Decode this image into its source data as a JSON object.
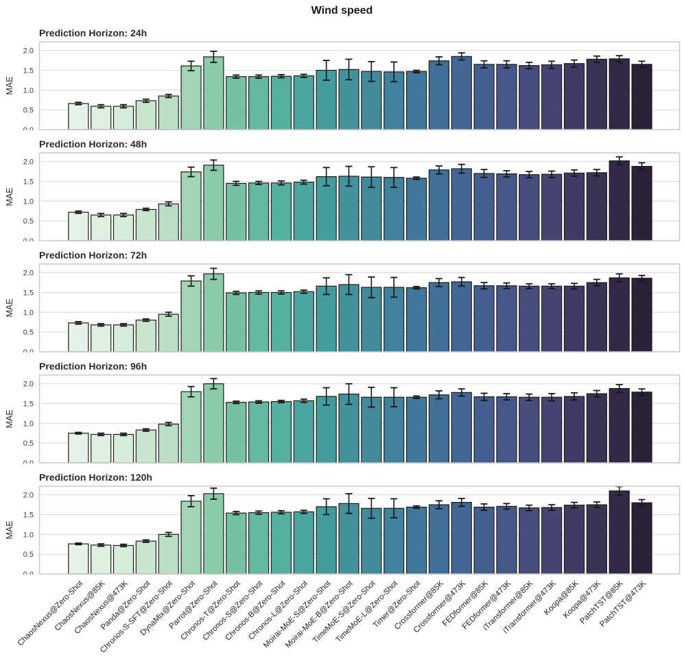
{
  "page": {
    "title": "Wind speed"
  },
  "chart_data": {
    "type": "bar",
    "title": "Wind speed",
    "ylabel": "MAE",
    "ylim": [
      0,
      2.22
    ],
    "yticks": [
      0.0,
      0.5,
      1.0,
      1.5,
      2.0
    ],
    "grid": true,
    "legend": "none",
    "error_bars": true,
    "categories": [
      "ChaosNexus@Zero-Shot",
      "ChaosNexus@85K",
      "ChaosNexus@473K",
      "Panda@Zero-Shot",
      "Chronos-S-SFT@Zero-Shot",
      "DynaMix@Zero-Shot",
      "Parrot@Zero-Shot",
      "Chronos-T@Zero-Shot",
      "Chronos-S@Zero-Shot",
      "Chronos-B@Zero-Shot",
      "Chronos-L@Zero-Shot",
      "Moirai-MoE-S@Zero-Shot",
      "Moirai-MoE-B@Zero-Shot",
      "TimeMoE-S@Zero-Shot",
      "TimeMoE-L@Zero-Shot",
      "Timer@Zero-Shot",
      "Crossformer@85K",
      "Crossformer@473K",
      "FEDformer@85K",
      "FEDformer@473K",
      "iTransformer@85K",
      "iTransformer@473K",
      "Koopa@85K",
      "Koopa@473K",
      "PatchTST@85K",
      "PatchTST@473K"
    ],
    "bar_colors": [
      "#E5F3E8",
      "#DDEFE0",
      "#D6ECD9",
      "#CAE6CF",
      "#BADFC4",
      "#A2D5B4",
      "#8CCBA8",
      "#76C1A1",
      "#65B9A0",
      "#55B0A0",
      "#4AA79F",
      "#449C9D",
      "#44929B",
      "#428A9B",
      "#40819B",
      "#3F789A",
      "#406F98",
      "#426795",
      "#445E8F",
      "#465687",
      "#474D7D",
      "#464471",
      "#403B63",
      "#393255",
      "#312946",
      "#2A2038"
    ],
    "bar_edge_color": "#1c1c1c",
    "error_color": "#161616",
    "grid_color": "#dcdcdc",
    "frame_color": "#c8c8c8",
    "subplots": [
      {
        "title": "Prediction Horizon: 24h",
        "horizon": "24h",
        "values": [
          0.66,
          0.59,
          0.59,
          0.73,
          0.85,
          1.61,
          1.84,
          1.34,
          1.34,
          1.35,
          1.36,
          1.5,
          1.52,
          1.47,
          1.46,
          1.47,
          1.74,
          1.85,
          1.65,
          1.65,
          1.62,
          1.64,
          1.67,
          1.78,
          1.79,
          1.65
        ],
        "errors": [
          0.03,
          0.04,
          0.04,
          0.04,
          0.04,
          0.12,
          0.14,
          0.04,
          0.04,
          0.04,
          0.04,
          0.25,
          0.26,
          0.25,
          0.25,
          0.03,
          0.1,
          0.09,
          0.09,
          0.09,
          0.08,
          0.09,
          0.09,
          0.08,
          0.08,
          0.08
        ]
      },
      {
        "title": "Prediction Horizon: 48h",
        "horizon": "48h",
        "values": [
          0.72,
          0.65,
          0.65,
          0.79,
          0.93,
          1.74,
          1.91,
          1.45,
          1.46,
          1.46,
          1.48,
          1.62,
          1.63,
          1.61,
          1.6,
          1.58,
          1.79,
          1.82,
          1.7,
          1.69,
          1.67,
          1.68,
          1.71,
          1.72,
          2.02,
          1.88
        ],
        "errors": [
          0.03,
          0.04,
          0.04,
          0.03,
          0.05,
          0.12,
          0.13,
          0.05,
          0.04,
          0.05,
          0.05,
          0.23,
          0.25,
          0.26,
          0.25,
          0.03,
          0.1,
          0.11,
          0.1,
          0.08,
          0.08,
          0.08,
          0.08,
          0.08,
          0.1,
          0.09
        ]
      },
      {
        "title": "Prediction Horizon: 72h",
        "horizon": "72h",
        "values": [
          0.73,
          0.68,
          0.68,
          0.8,
          0.95,
          1.79,
          1.97,
          1.49,
          1.5,
          1.5,
          1.52,
          1.66,
          1.7,
          1.63,
          1.63,
          1.62,
          1.75,
          1.77,
          1.67,
          1.67,
          1.66,
          1.66,
          1.66,
          1.75,
          1.87,
          1.86
        ],
        "errors": [
          0.03,
          0.03,
          0.03,
          0.03,
          0.05,
          0.13,
          0.14,
          0.04,
          0.04,
          0.04,
          0.04,
          0.21,
          0.25,
          0.26,
          0.25,
          0.03,
          0.1,
          0.11,
          0.08,
          0.07,
          0.06,
          0.06,
          0.07,
          0.08,
          0.1,
          0.07
        ]
      },
      {
        "title": "Prediction Horizon: 96h",
        "horizon": "96h",
        "values": [
          0.75,
          0.72,
          0.72,
          0.83,
          0.98,
          1.8,
          2.0,
          1.53,
          1.54,
          1.55,
          1.57,
          1.68,
          1.74,
          1.66,
          1.66,
          1.66,
          1.72,
          1.78,
          1.67,
          1.67,
          1.66,
          1.66,
          1.68,
          1.75,
          1.88,
          1.79
        ],
        "errors": [
          0.02,
          0.03,
          0.03,
          0.03,
          0.04,
          0.13,
          0.13,
          0.03,
          0.03,
          0.03,
          0.04,
          0.22,
          0.26,
          0.25,
          0.24,
          0.03,
          0.1,
          0.09,
          0.09,
          0.08,
          0.08,
          0.09,
          0.09,
          0.08,
          0.1,
          0.08
        ]
      },
      {
        "title": "Prediction Horizon: 120h",
        "horizon": "120h",
        "values": [
          0.76,
          0.73,
          0.72,
          0.83,
          1.0,
          1.84,
          2.03,
          1.54,
          1.55,
          1.56,
          1.57,
          1.7,
          1.78,
          1.66,
          1.66,
          1.69,
          1.75,
          1.81,
          1.69,
          1.71,
          1.67,
          1.68,
          1.74,
          1.75,
          2.1,
          1.8
        ],
        "errors": [
          0.02,
          0.03,
          0.03,
          0.03,
          0.05,
          0.14,
          0.14,
          0.04,
          0.04,
          0.04,
          0.04,
          0.2,
          0.25,
          0.25,
          0.24,
          0.03,
          0.1,
          0.1,
          0.08,
          0.07,
          0.07,
          0.07,
          0.07,
          0.07,
          0.11,
          0.08
        ]
      }
    ]
  }
}
